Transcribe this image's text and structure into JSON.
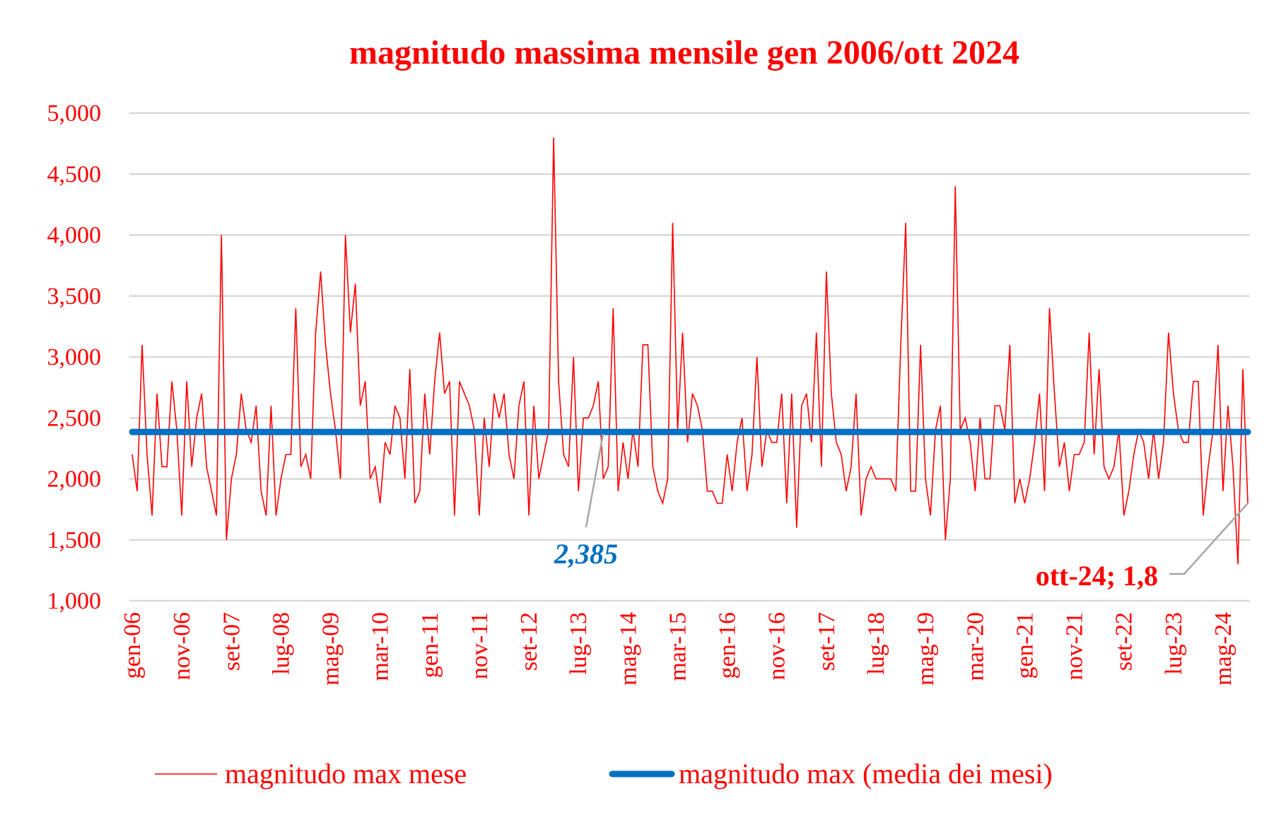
{
  "chart_data": {
    "type": "line",
    "title": "magnitudo massima mensile gen 2006/ott 2024",
    "x_start": "gen-06",
    "x_end": "ott-24",
    "x_tick_labels": [
      "gen-06",
      "nov-06",
      "set-07",
      "lug-08",
      "mag-09",
      "mar-10",
      "gen-11",
      "nov-11",
      "set-12",
      "lug-13",
      "mag-14",
      "mar-15",
      "gen-16",
      "nov-16",
      "set-17",
      "lug-18",
      "mag-19",
      "mar-20",
      "gen-21",
      "nov-21",
      "set-22",
      "lug-23",
      "mag-24"
    ],
    "x_tick_every_months": 10,
    "y_tick_labels": [
      "5,000",
      "4,500",
      "4,000",
      "3,500",
      "3,000",
      "2,500",
      "2,000",
      "1,500",
      "1,000"
    ],
    "y_ticks": [
      5,
      4.5,
      4,
      3.5,
      3,
      2.5,
      2,
      1.5,
      1
    ],
    "ylim": [
      1,
      5
    ],
    "grid": "horizontal",
    "legend_position": "bottom",
    "series": [
      {
        "name": "magnitudo max mese",
        "color": "#FF0000",
        "values": [
          2.2,
          1.9,
          3.1,
          2.2,
          1.7,
          2.7,
          2.1,
          2.1,
          2.8,
          2.4,
          1.7,
          2.8,
          2.1,
          2.5,
          2.7,
          2.1,
          1.9,
          1.7,
          4.0,
          1.5,
          2.0,
          2.2,
          2.7,
          2.4,
          2.3,
          2.6,
          1.9,
          1.7,
          2.6,
          1.7,
          2.0,
          2.2,
          2.2,
          3.4,
          2.1,
          2.2,
          2.0,
          3.2,
          3.7,
          3.1,
          2.7,
          2.4,
          2.0,
          4.0,
          3.2,
          3.6,
          2.6,
          2.8,
          2.0,
          2.1,
          1.8,
          2.3,
          2.2,
          2.6,
          2.5,
          2.0,
          2.9,
          1.8,
          1.9,
          2.7,
          2.2,
          2.8,
          3.2,
          2.7,
          2.8,
          1.7,
          2.8,
          2.7,
          2.6,
          2.4,
          1.7,
          2.5,
          2.1,
          2.7,
          2.5,
          2.7,
          2.2,
          2.0,
          2.6,
          2.8,
          1.7,
          2.6,
          2.0,
          2.2,
          2.4,
          4.8,
          2.8,
          2.2,
          2.1,
          3.0,
          1.9,
          2.5,
          2.5,
          2.6,
          2.8,
          2.0,
          2.1,
          3.4,
          1.9,
          2.3,
          2.0,
          2.4,
          2.1,
          3.1,
          3.1,
          2.1,
          1.9,
          1.8,
          2.0,
          4.1,
          2.4,
          3.2,
          2.3,
          2.7,
          2.6,
          2.4,
          1.9,
          1.9,
          1.8,
          1.8,
          2.2,
          1.9,
          2.3,
          2.5,
          1.9,
          2.2,
          3.0,
          2.1,
          2.4,
          2.3,
          2.3,
          2.7,
          1.8,
          2.7,
          1.6,
          2.6,
          2.7,
          2.3,
          3.2,
          2.1,
          3.7,
          2.7,
          2.3,
          2.2,
          1.9,
          2.1,
          2.7,
          1.7,
          2.0,
          2.1,
          2.0,
          2.0,
          2.0,
          2.0,
          1.9,
          3.1,
          4.1,
          1.9,
          1.9,
          3.1,
          2.0,
          1.7,
          2.4,
          2.6,
          1.5,
          2.0,
          4.4,
          2.4,
          2.5,
          2.3,
          1.9,
          2.5,
          2.0,
          2.0,
          2.6,
          2.6,
          2.4,
          3.1,
          1.8,
          2.0,
          1.8,
          2.0,
          2.3,
          2.7,
          1.9,
          3.4,
          2.7,
          2.1,
          2.3,
          1.9,
          2.2,
          2.2,
          2.3,
          3.2,
          2.2,
          2.9,
          2.1,
          2.0,
          2.1,
          2.4,
          1.7,
          1.9,
          2.2,
          2.4,
          2.3,
          2.0,
          2.4,
          2.0,
          2.3,
          3.2,
          2.7,
          2.4,
          2.3,
          2.3,
          2.8,
          2.8,
          1.7,
          2.1,
          2.4,
          3.1,
          1.9,
          2.6,
          2.1,
          1.3,
          2.9,
          1.8
        ]
      },
      {
        "name": "magnitudo max (media dei mesi)",
        "color": "#0070C0",
        "value": 2.385
      }
    ],
    "annotations": {
      "mean_label": "2,385",
      "last_label": "ott-24; 1,8"
    }
  }
}
